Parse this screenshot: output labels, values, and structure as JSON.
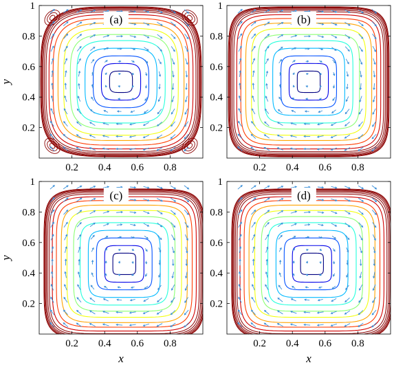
{
  "chart_data": {
    "type": "streamlines-with-vector-field",
    "layout": "2x2",
    "colormap": "jet",
    "xlim": [
      0,
      1
    ],
    "ylim": [
      0,
      1
    ],
    "xticks": [
      0.2,
      0.4,
      0.6,
      0.8
    ],
    "yticks": [
      0.2,
      0.4,
      0.6,
      0.8,
      1
    ],
    "xtick_labels": [
      "0.2",
      "0.4",
      "0.6",
      "0.8"
    ],
    "ytick_labels": [
      "0.2",
      "0.4",
      "0.6",
      "0.8",
      "1"
    ],
    "xlabel": "x",
    "ylabel": "y",
    "colors": {
      "arrows": "#3a8fd8",
      "frame": "#000000",
      "background": "#ffffff"
    },
    "panels": [
      {
        "label": "(a)",
        "vortex_center": [
          0.5,
          0.5
        ],
        "corner_vortices": true,
        "squareness": 4,
        "show_xlabel": false,
        "show_ylabel": true
      },
      {
        "label": "(b)",
        "vortex_center": [
          0.5,
          0.5
        ],
        "corner_vortices": false,
        "squareness": 6,
        "show_xlabel": false,
        "show_ylabel": false
      },
      {
        "label": "(c)",
        "vortex_center": [
          0.52,
          0.46
        ],
        "corner_vortices": false,
        "squareness": 6,
        "show_xlabel": true,
        "show_ylabel": true
      },
      {
        "label": "(d)",
        "vortex_center": [
          0.52,
          0.46
        ],
        "corner_vortices": false,
        "squareness": 6,
        "show_xlabel": true,
        "show_ylabel": false
      }
    ]
  }
}
